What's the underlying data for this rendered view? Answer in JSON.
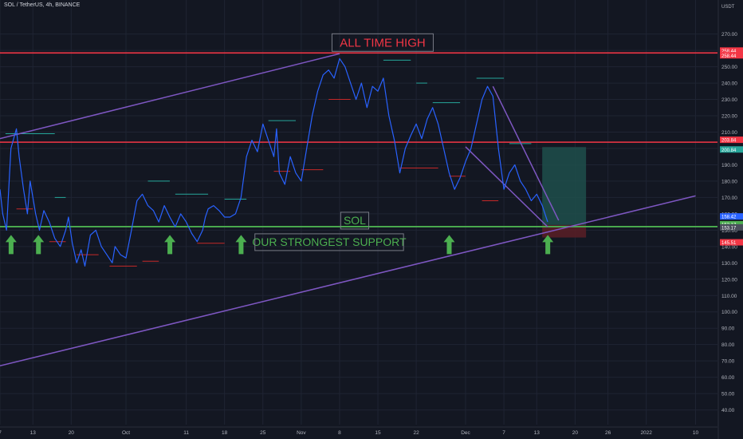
{
  "header": {
    "symbol_line": "SOL / TetherUS, 4h, BINANCE"
  },
  "axis": {
    "currency": "USDT"
  },
  "annotations": {
    "ath": "ALL TIME HIGH",
    "sol": "SOL",
    "support": "OUR STRONGEST SUPPORT"
  },
  "colors": {
    "background": "#131722",
    "grid": "#1f2433",
    "price_line": "#2962ff",
    "horizontal_level": "#f23645",
    "support_level": "#4caf50",
    "channel": "#7e57c2",
    "arrow": "#4caf50",
    "target_zone": "#1e4f4b",
    "stop_zone": "#5a1f26",
    "marker_teal": "#26a69a",
    "marker_red": "#c62828"
  },
  "price_tags": [
    {
      "label": "258.44",
      "value": 258.44,
      "color": "#f23645"
    },
    {
      "label": "258.44",
      "value": 258.44,
      "color": "#f23645"
    },
    {
      "label": "203.84",
      "value": 203.84,
      "color": "#f23645"
    },
    {
      "label": "200.84",
      "value": 200.84,
      "color": "#26a69a"
    },
    {
      "label": "158.42",
      "value": 158.42,
      "color": "#2962ff"
    },
    {
      "label": "152.17",
      "value": 152.17,
      "color": "#4caf50"
    },
    {
      "label": "153.17",
      "value": 153.17,
      "color": "#4a4f5c"
    },
    {
      "label": "145.51",
      "value": 145.51,
      "color": "#f23645"
    }
  ],
  "chart_data": {
    "type": "line",
    "title": "SOL / TetherUS, 4h, BINANCE",
    "ylabel": "USDT",
    "ylim": [
      31,
      284
    ],
    "y_scale": "linear",
    "grid": true,
    "yticks": [
      40,
      50,
      60,
      70,
      80,
      90,
      100,
      110,
      120,
      130,
      140,
      150,
      160,
      170,
      180,
      190,
      200,
      210,
      220,
      230,
      240,
      250,
      260,
      270
    ],
    "xticks": [
      "7",
      "13",
      "20",
      "Oct",
      "11",
      "18",
      "25",
      "Nov",
      "8",
      "15",
      "22",
      "Dec",
      "7",
      "13",
      "20",
      "26",
      "2022",
      "10"
    ],
    "xtick_positions": [
      0,
      6,
      13,
      23,
      34,
      41,
      48,
      55,
      62,
      69,
      76,
      85,
      92,
      98,
      105,
      111,
      118,
      127
    ],
    "xlim": [
      0,
      131
    ],
    "series": [
      {
        "values": [
          [
            0,
            175
          ],
          [
            0.5,
            160
          ],
          [
            1.2,
            150
          ],
          [
            2,
            200
          ],
          [
            3,
            212
          ],
          [
            3.5,
            195
          ],
          [
            4.3,
            175
          ],
          [
            5,
            160
          ],
          [
            5.5,
            180
          ],
          [
            6.5,
            160
          ],
          [
            7.2,
            150
          ],
          [
            8,
            162
          ],
          [
            9,
            155
          ],
          [
            10,
            145
          ],
          [
            11,
            140
          ],
          [
            12,
            150
          ],
          [
            12.5,
            158
          ],
          [
            13.2,
            142
          ],
          [
            14,
            130
          ],
          [
            14.8,
            138
          ],
          [
            15.5,
            128
          ],
          [
            16.5,
            147
          ],
          [
            17.5,
            150
          ],
          [
            18.5,
            140
          ],
          [
            19.5,
            135
          ],
          [
            20.5,
            130
          ],
          [
            21,
            140
          ],
          [
            22,
            135
          ],
          [
            23,
            133
          ],
          [
            24,
            150
          ],
          [
            25,
            168
          ],
          [
            26,
            172
          ],
          [
            27,
            165
          ],
          [
            28,
            162
          ],
          [
            29,
            155
          ],
          [
            30,
            165
          ],
          [
            31,
            158
          ],
          [
            32,
            152
          ],
          [
            33,
            160
          ],
          [
            34,
            155
          ],
          [
            35,
            148
          ],
          [
            36,
            143
          ],
          [
            37,
            150
          ],
          [
            37.5,
            158
          ],
          [
            38,
            163
          ],
          [
            39,
            165
          ],
          [
            40,
            162
          ],
          [
            41,
            158
          ],
          [
            42,
            158
          ],
          [
            43,
            160
          ],
          [
            44,
            170
          ],
          [
            45,
            195
          ],
          [
            46,
            205
          ],
          [
            47,
            198
          ],
          [
            48,
            215
          ],
          [
            49,
            205
          ],
          [
            50,
            195
          ],
          [
            50.5,
            212
          ],
          [
            51,
            185
          ],
          [
            52,
            178
          ],
          [
            53,
            195
          ],
          [
            54,
            185
          ],
          [
            55,
            180
          ],
          [
            56,
            200
          ],
          [
            57,
            220
          ],
          [
            58,
            235
          ],
          [
            59,
            245
          ],
          [
            60,
            248
          ],
          [
            61,
            243
          ],
          [
            62,
            255
          ],
          [
            63,
            250
          ],
          [
            64,
            240
          ],
          [
            65,
            230
          ],
          [
            66,
            240
          ],
          [
            67,
            225
          ],
          [
            68,
            238
          ],
          [
            69,
            235
          ],
          [
            70,
            243
          ],
          [
            71,
            220
          ],
          [
            72,
            205
          ],
          [
            73,
            185
          ],
          [
            74,
            200
          ],
          [
            75,
            208
          ],
          [
            76,
            215
          ],
          [
            77,
            206
          ],
          [
            78,
            218
          ],
          [
            79,
            225
          ],
          [
            80,
            215
          ],
          [
            81,
            200
          ],
          [
            82,
            185
          ],
          [
            83,
            175
          ],
          [
            84,
            182
          ],
          [
            85,
            192
          ],
          [
            86,
            200
          ],
          [
            87,
            215
          ],
          [
            88,
            230
          ],
          [
            89,
            238
          ],
          [
            90,
            232
          ],
          [
            91,
            200
          ],
          [
            92,
            175
          ],
          [
            93,
            185
          ],
          [
            94,
            190
          ],
          [
            95,
            180
          ],
          [
            96,
            175
          ],
          [
            97,
            168
          ],
          [
            98,
            172
          ],
          [
            99,
            165
          ],
          [
            100,
            155
          ]
        ]
      }
    ],
    "levels": [
      {
        "value": 258.44,
        "label": "ALL TIME HIGH"
      },
      {
        "value": 203.84
      },
      {
        "value": 152.17,
        "label": "SOL"
      }
    ],
    "channel_lines": [
      {
        "points": [
          [
            0,
            206
          ],
          [
            62,
            258
          ]
        ]
      },
      {
        "points": [
          [
            0,
            67
          ],
          [
            127,
            171
          ]
        ]
      },
      {
        "points": [
          [
            85,
            201
          ],
          [
            100,
            152
          ]
        ]
      },
      {
        "points": [
          [
            90,
            238
          ],
          [
            102,
            156
          ]
        ]
      }
    ],
    "position_box": {
      "x_range": [
        99,
        107
      ],
      "entry": 153.17,
      "target": 200.84,
      "stop": 145.51
    },
    "arrows_at_x": [
      1,
      6,
      30,
      43,
      81,
      99
    ],
    "markers": [
      {
        "x": [
          1,
          10
        ],
        "y": 209,
        "kind": "teal"
      },
      {
        "x": [
          10,
          12
        ],
        "y": 170,
        "kind": "teal"
      },
      {
        "x": [
          27,
          31
        ],
        "y": 180,
        "kind": "teal"
      },
      {
        "x": [
          32,
          38
        ],
        "y": 172,
        "kind": "teal"
      },
      {
        "x": [
          41,
          45
        ],
        "y": 169,
        "kind": "teal"
      },
      {
        "x": [
          49,
          54
        ],
        "y": 217,
        "kind": "teal"
      },
      {
        "x": [
          70,
          75
        ],
        "y": 254,
        "kind": "teal"
      },
      {
        "x": [
          76,
          78
        ],
        "y": 240,
        "kind": "teal"
      },
      {
        "x": [
          79,
          84
        ],
        "y": 228,
        "kind": "teal"
      },
      {
        "x": [
          87,
          92
        ],
        "y": 243,
        "kind": "teal"
      },
      {
        "x": [
          93,
          97
        ],
        "y": 203,
        "kind": "teal"
      },
      {
        "x": [
          3,
          6
        ],
        "y": 163,
        "kind": "red"
      },
      {
        "x": [
          9,
          12
        ],
        "y": 143,
        "kind": "red"
      },
      {
        "x": [
          14,
          18
        ],
        "y": 135,
        "kind": "red"
      },
      {
        "x": [
          20,
          25
        ],
        "y": 128,
        "kind": "red"
      },
      {
        "x": [
          26,
          29
        ],
        "y": 131,
        "kind": "red"
      },
      {
        "x": [
          36,
          41
        ],
        "y": 142,
        "kind": "red"
      },
      {
        "x": [
          50,
          53
        ],
        "y": 186,
        "kind": "red"
      },
      {
        "x": [
          55,
          59
        ],
        "y": 187,
        "kind": "red"
      },
      {
        "x": [
          60,
          64
        ],
        "y": 230,
        "kind": "red"
      },
      {
        "x": [
          73,
          80
        ],
        "y": 188,
        "kind": "red"
      },
      {
        "x": [
          82,
          85
        ],
        "y": 183,
        "kind": "red"
      },
      {
        "x": [
          88,
          91
        ],
        "y": 168,
        "kind": "red"
      }
    ]
  }
}
